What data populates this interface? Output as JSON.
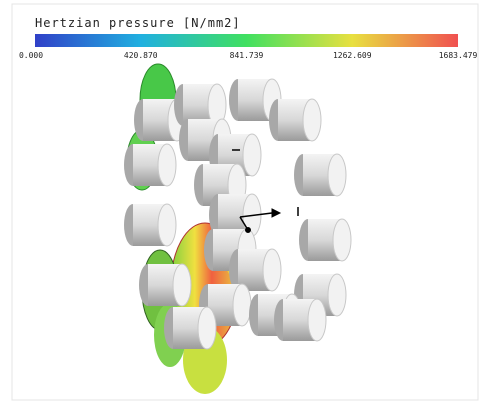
{
  "legend": {
    "title": "Hertzian pressure [N/mm2]",
    "ticks": [
      "0.000",
      "420.870",
      "841.739",
      "1262.609",
      "1683.479"
    ]
  }
}
